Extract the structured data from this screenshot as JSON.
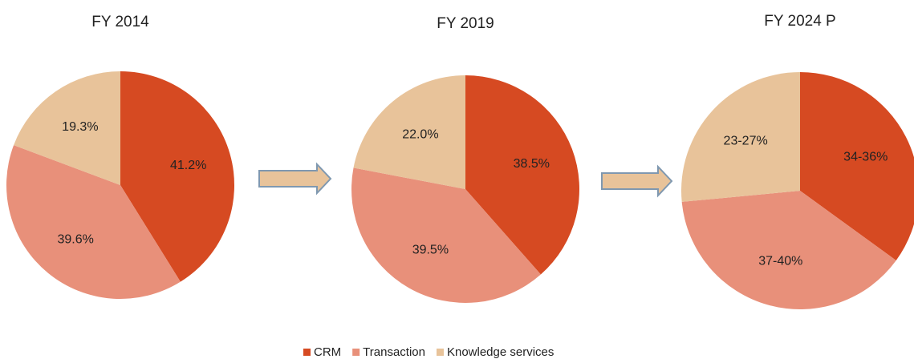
{
  "chart_data": [
    {
      "type": "pie",
      "title": "FY 2014",
      "categories": [
        "CRM",
        "Transaction",
        "Knowledge services"
      ],
      "values": [
        41.2,
        39.6,
        19.3
      ],
      "value_labels": [
        "41.2%",
        "39.6%",
        "19.3%"
      ],
      "colors": [
        "#d64a22",
        "#e8907a",
        "#e8c39a"
      ]
    },
    {
      "type": "pie",
      "title": "FY 2019",
      "categories": [
        "CRM",
        "Transaction",
        "Knowledge services"
      ],
      "values": [
        38.5,
        39.5,
        22.0
      ],
      "value_labels": [
        "38.5%",
        "39.5%",
        "22.0%"
      ],
      "colors": [
        "#d64a22",
        "#e8907a",
        "#e8c39a"
      ]
    },
    {
      "type": "pie",
      "title": "FY 2024 P",
      "categories": [
        "CRM",
        "Transaction",
        "Knowledge services"
      ],
      "values": [
        35,
        38.5,
        26.5
      ],
      "value_labels": [
        "34-36%",
        "37-40%",
        "23-27%"
      ],
      "colors": [
        "#d64a22",
        "#e8907a",
        "#e8c39a"
      ]
    }
  ]
}
